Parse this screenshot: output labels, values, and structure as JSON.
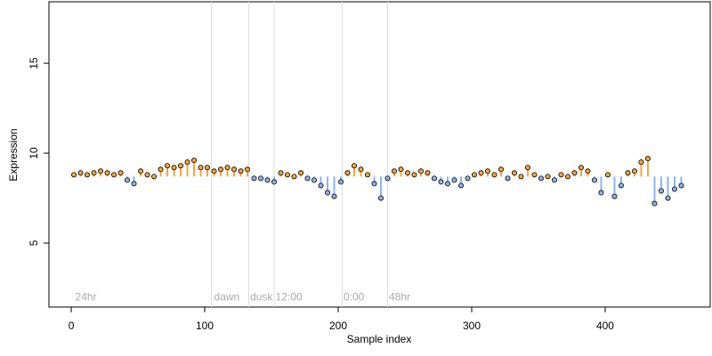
{
  "chart_data": {
    "type": "lollipop",
    "x_label": "Sample index",
    "y_label": "Expression",
    "xlim": [
      -16.7,
      478.7
    ],
    "ylim": [
      1.44,
      18.42
    ],
    "xticks": [
      0,
      100,
      200,
      300,
      400
    ],
    "yticks": [
      5,
      10,
      15
    ],
    "baseline": 8.7,
    "above_color": "#f5a442",
    "below_color": "#8fb4e8",
    "vlines": [
      105,
      133,
      152,
      203,
      237
    ],
    "annotations": [
      {
        "text": "24hr",
        "x": 3,
        "y": 1.98
      },
      {
        "text": "dawn",
        "x": 107,
        "y": 1.98
      },
      {
        "text": "dusk",
        "x": 134,
        "y": 1.98
      },
      {
        "text": "12:00",
        "x": 153,
        "y": 1.98
      },
      {
        "text": "0:00",
        "x": 204,
        "y": 1.98
      },
      {
        "text": "48hr",
        "x": 238,
        "y": 1.98
      }
    ],
    "x": [
      2,
      7,
      12,
      17,
      22,
      27,
      32,
      37,
      42,
      47,
      52,
      57,
      62,
      67,
      72,
      77,
      82,
      87,
      92,
      97,
      102,
      107,
      112,
      117,
      122,
      127,
      132,
      137,
      142,
      147,
      152,
      157,
      162,
      167,
      172,
      177,
      182,
      187,
      192,
      197,
      202,
      207,
      212,
      217,
      222,
      227,
      232,
      237,
      242,
      247,
      252,
      257,
      262,
      267,
      272,
      277,
      282,
      287,
      292,
      297,
      302,
      307,
      312,
      317,
      322,
      327,
      332,
      337,
      342,
      347,
      352,
      357,
      362,
      367,
      372,
      377,
      382,
      387,
      392,
      397,
      402,
      407,
      412,
      417,
      422,
      427,
      432,
      437,
      442,
      447,
      452,
      457
    ],
    "values": [
      8.8,
      8.9,
      8.8,
      8.9,
      9.0,
      8.9,
      8.8,
      8.9,
      8.5,
      8.3,
      9.0,
      8.8,
      8.7,
      9.1,
      9.3,
      9.2,
      9.3,
      9.5,
      9.6,
      9.2,
      9.2,
      9.0,
      9.1,
      9.2,
      9.1,
      9.0,
      9.1,
      8.6,
      8.6,
      8.5,
      8.4,
      8.9,
      8.8,
      8.7,
      8.9,
      8.6,
      8.5,
      8.2,
      7.8,
      7.6,
      8.4,
      8.9,
      9.3,
      9.1,
      8.8,
      8.3,
      7.5,
      8.6,
      9.0,
      9.1,
      8.9,
      8.8,
      9.0,
      8.9,
      8.6,
      8.4,
      8.3,
      8.5,
      8.2,
      8.6,
      8.8,
      8.9,
      9.0,
      8.8,
      9.1,
      8.6,
      8.9,
      8.7,
      9.2,
      8.8,
      8.6,
      8.7,
      8.5,
      8.8,
      8.7,
      8.9,
      9.2,
      9.0,
      8.5,
      7.8,
      8.8,
      7.6,
      8.2,
      8.9,
      9.0,
      9.5,
      9.7,
      7.2,
      7.9,
      7.5,
      8.0,
      8.2
    ]
  }
}
